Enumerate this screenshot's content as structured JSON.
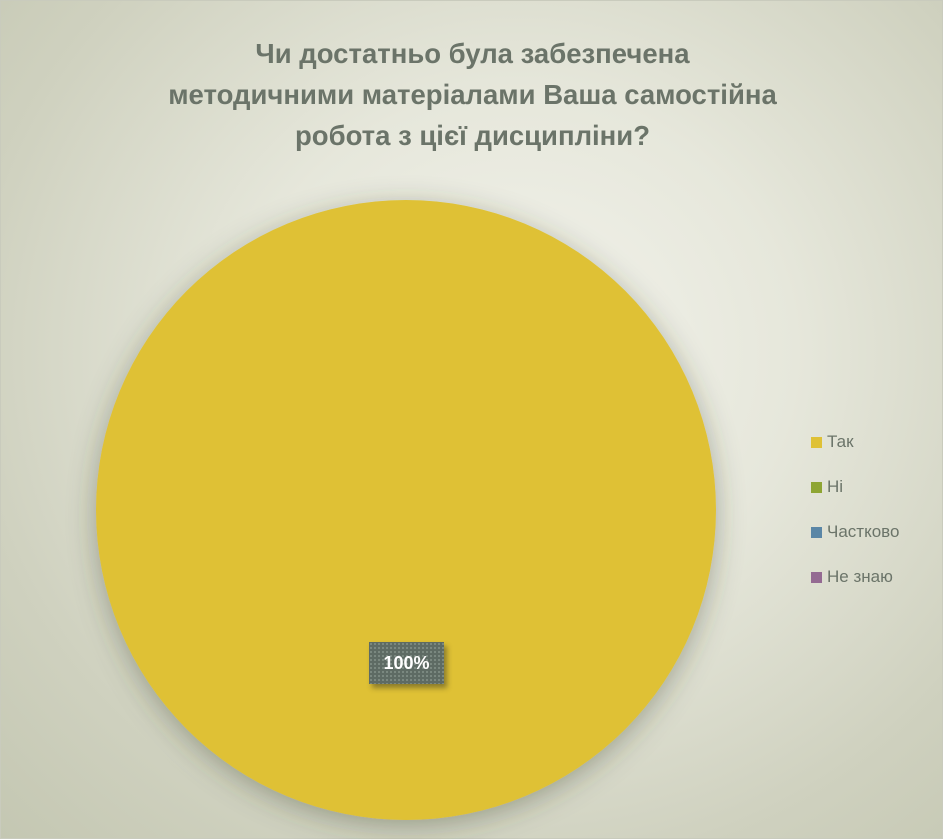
{
  "chart_data": {
    "type": "pie",
    "title": "Чи достатньо була забезпечена методичними матеріалами Ваша самостійна робота з цієї дисципліни?",
    "title_lines": [
      "Чи достатньо була забезпечена",
      "методичними матеріалами Ваша самостійна",
      "робота з цієї дисципліни?"
    ],
    "categories": [
      "Так",
      "Ні",
      "Частково",
      "Не знаю"
    ],
    "values": [
      100,
      0,
      0,
      0
    ],
    "unit": "%",
    "data_labels": [
      "100%"
    ],
    "colors": [
      "#dfc136",
      "#8ea533",
      "#5a86a6",
      "#946a92"
    ],
    "legend_position": "right"
  }
}
